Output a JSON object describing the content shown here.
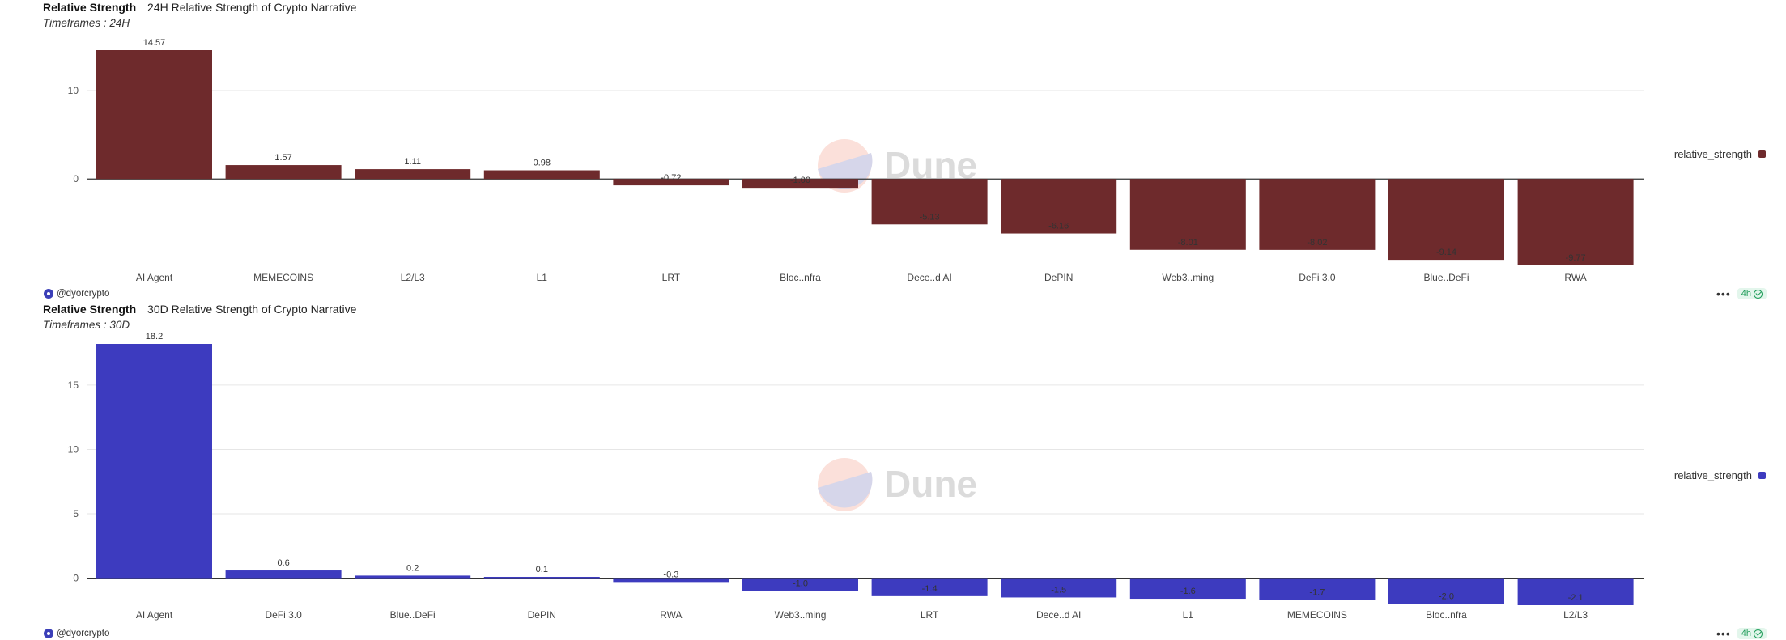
{
  "watermark": "Dune",
  "panels": [
    {
      "query_title": "Relative Strength",
      "viz_title": "24H Relative Strength of Crypto Narrative",
      "subtitle": "Timeframes : 24H",
      "owner": "@dyorcrypto",
      "refresh": "4h",
      "more_label": "•••",
      "legend_label": "relative_strength",
      "color": "#6e2a2c",
      "chart_data": {
        "type": "bar",
        "categories": [
          "AI Agent",
          "MEMECOINS",
          "L2/L3",
          "L1",
          "LRT",
          "Bloc..nfra",
          "Dece..d AI",
          "DePIN",
          "Web3..ming",
          "DeFi 3.0",
          "Blue..DeFi",
          "RWA"
        ],
        "values": [
          14.57,
          1.57,
          1.11,
          0.98,
          -0.72,
          -1.0,
          -5.13,
          -6.16,
          -8.01,
          -8.02,
          -9.14,
          -9.77
        ],
        "value_labels": [
          "14.57",
          "1.57",
          "1.11",
          "0.98",
          "-0.72",
          "-1.00",
          "-5.13",
          "-6.16",
          "-8.01",
          "-8.02",
          "-9.14",
          "-9.77"
        ],
        "yticks": [
          0,
          10
        ],
        "ylim": [
          -9.77,
          14.57
        ],
        "grid": true,
        "legend": "right",
        "series": [
          {
            "name": "relative_strength",
            "values": [
              14.57,
              1.57,
              1.11,
              0.98,
              -0.72,
              -1.0,
              -5.13,
              -6.16,
              -8.01,
              -8.02,
              -9.14,
              -9.77
            ]
          }
        ]
      }
    },
    {
      "query_title": "Relative Strength",
      "viz_title": "30D Relative Strength of Crypto Narrative",
      "subtitle": "Timeframes : 30D",
      "owner": "@dyorcrypto",
      "refresh": "4h",
      "more_label": "•••",
      "legend_label": "relative_strength",
      "color": "#3d3bbf",
      "chart_data": {
        "type": "bar",
        "categories": [
          "AI Agent",
          "DeFi 3.0",
          "Blue..DeFi",
          "DePIN",
          "RWA",
          "Web3..ming",
          "LRT",
          "Dece..d AI",
          "L1",
          "MEMECOINS",
          "Bloc..nfra",
          "L2/L3"
        ],
        "values": [
          18.2,
          0.6,
          0.2,
          0.1,
          -0.3,
          -1.0,
          -1.4,
          -1.5,
          -1.6,
          -1.7,
          -2.0,
          -2.1
        ],
        "value_labels": [
          "18.2",
          "0.6",
          "0.2",
          "0.1",
          "-0.3",
          "-1.0",
          "-1.4",
          "-1.5",
          "-1.6",
          "-1.7",
          "-2.0",
          "-2.1"
        ],
        "yticks": [
          0,
          5,
          10,
          15
        ],
        "ylim": [
          -2.1,
          18.2
        ],
        "grid": true,
        "legend": "right",
        "series": [
          {
            "name": "relative_strength",
            "values": [
              18.2,
              0.6,
              0.2,
              0.1,
              -0.3,
              -1.0,
              -1.4,
              -1.5,
              -1.6,
              -1.7,
              -2.0,
              -2.1
            ]
          }
        ]
      }
    }
  ]
}
